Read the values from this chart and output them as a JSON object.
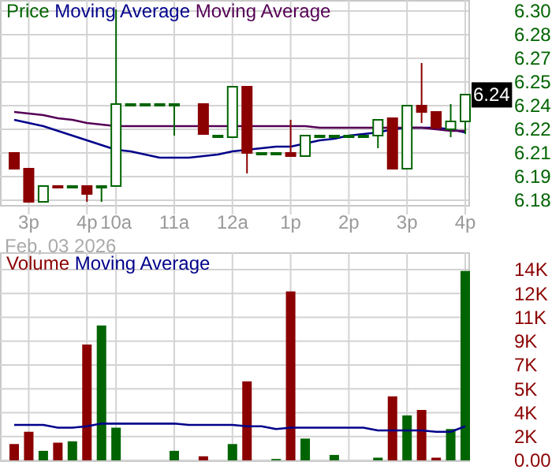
{
  "chart_data": [
    {
      "type": "candlestick",
      "categories": [
        null,
        "3p",
        null,
        null,
        null,
        "4p",
        null,
        "10a",
        null,
        null,
        null,
        "11a",
        null,
        null,
        null,
        "12a",
        null,
        null,
        null,
        "1p",
        null,
        null,
        null,
        "2p",
        null,
        null,
        null,
        "3p",
        null,
        null,
        null,
        "4p"
      ],
      "ylim": [
        6.177,
        6.307
      ],
      "yticks": [
        {
          "value": 6.18,
          "label": "6.18"
        },
        {
          "value": 6.195,
          "label": "6.19"
        },
        {
          "value": 6.21,
          "label": "6.21"
        },
        {
          "value": 6.225,
          "label": "6.22"
        },
        {
          "value": 6.24,
          "label": "6.24"
        },
        {
          "value": 6.255,
          "label": "6.25"
        },
        {
          "value": 6.27,
          "label": "6.27"
        },
        {
          "value": 6.285,
          "label": "6.28"
        },
        {
          "value": 6.3,
          "label": "6.30"
        }
      ],
      "grid": true,
      "legend": "top left",
      "series": [
        {
          "name": "Price",
          "color": "#006400",
          "ohlc": [
            [
              6.21,
              6.21,
              6.2,
              6.2
            ],
            [
              6.2,
              6.2,
              6.179,
              6.179
            ],
            [
              6.179,
              6.189,
              6.179,
              6.189
            ],
            [
              6.189,
              6.189,
              6.188,
              6.188
            ],
            [
              6.188,
              6.189,
              6.188,
              6.189
            ],
            [
              6.189,
              6.189,
              6.179,
              6.184
            ],
            [
              6.189,
              6.189,
              6.179,
              6.189
            ],
            [
              6.189,
              6.301,
              6.189,
              6.241
            ],
            [
              6.241,
              6.241,
              6.241,
              6.241
            ],
            [
              6.241,
              6.241,
              6.241,
              6.241
            ],
            [
              6.241,
              6.241,
              6.241,
              6.241
            ],
            [
              6.241,
              6.241,
              6.221,
              6.241
            ],
            null,
            [
              6.241,
              6.241,
              6.222,
              6.222
            ],
            [
              6.221,
              6.221,
              6.221,
              6.221
            ],
            [
              6.22,
              6.252,
              6.22,
              6.252
            ],
            [
              6.252,
              6.252,
              6.197,
              6.21
            ],
            [
              6.21,
              6.21,
              6.21,
              6.21
            ],
            [
              6.21,
              6.21,
              6.21,
              6.21
            ],
            [
              6.21,
              6.231,
              6.208,
              6.208
            ],
            [
              6.208,
              6.221,
              6.208,
              6.221
            ],
            [
              6.221,
              6.221,
              6.221,
              6.221
            ],
            [
              6.221,
              6.221,
              6.221,
              6.221
            ],
            [
              6.221,
              6.221,
              6.221,
              6.221
            ],
            [
              6.221,
              6.221,
              6.221,
              6.221
            ],
            [
              6.221,
              6.231,
              6.213,
              6.231
            ],
            [
              6.232,
              6.232,
              6.2,
              6.2
            ],
            [
              6.2,
              6.24,
              6.2,
              6.24
            ],
            [
              6.24,
              6.267,
              6.229,
              6.236
            ],
            [
              6.236,
              6.236,
              6.226,
              6.226
            ],
            [
              6.225,
              6.241,
              6.22,
              6.23
            ],
            [
              6.23,
              6.247,
              6.222,
              6.247
            ]
          ],
          "colors": [
            "#8b0000",
            "#8b0000",
            "#006400",
            "#8b0000",
            "#006400",
            "#8b0000",
            "#006400",
            "#006400",
            "#006400",
            "#006400",
            "#006400",
            "#006400",
            null,
            "#8b0000",
            "#006400",
            "#006400",
            "#8b0000",
            "#006400",
            "#006400",
            "#8b0000",
            "#006400",
            "#006400",
            "#006400",
            "#006400",
            "#006400",
            "#006400",
            "#8b0000",
            "#006400",
            "#8b0000",
            "#8b0000",
            "#006400",
            "#006400"
          ]
        },
        {
          "type": "line",
          "name": "Moving Average",
          "color": "#00008b",
          "values": [
            6.231,
            6.229,
            6.227,
            6.224,
            6.221,
            6.218,
            6.215,
            6.212,
            6.211,
            6.209,
            6.207,
            6.207,
            6.207,
            6.208,
            6.209,
            6.211,
            6.212,
            6.213,
            6.214,
            6.214,
            6.216,
            6.218,
            6.219,
            6.221,
            6.222,
            6.223,
            6.225,
            6.226,
            6.226,
            6.226,
            6.225,
            6.223
          ]
        },
        {
          "type": "line",
          "name": "Moving Average",
          "color": "#550055",
          "values": [
            6.236,
            6.235,
            6.234,
            6.232,
            6.231,
            6.229,
            6.228,
            6.227,
            6.227,
            6.227,
            6.227,
            6.227,
            6.227,
            6.227,
            6.227,
            6.227,
            6.227,
            6.227,
            6.227,
            6.227,
            6.227,
            6.226,
            6.226,
            6.226,
            6.226,
            6.226,
            6.226,
            6.226,
            6.226,
            6.225,
            6.224,
            6.224
          ]
        }
      ],
      "annotations": [
        "Feb, 03 2026",
        {
          "text": "6.24",
          "y": 6.247
        }
      ]
    },
    {
      "type": "bar",
      "categories": [
        null,
        null,
        null,
        null,
        null,
        null,
        null,
        null,
        null,
        null,
        null,
        null,
        null,
        null,
        null,
        null,
        null,
        null,
        null,
        null,
        null,
        null,
        null,
        null,
        null,
        null,
        null,
        null,
        null,
        null,
        null,
        null
      ],
      "ylim": [
        0,
        14000
      ],
      "yticks": [
        {
          "value": 0,
          "label": "0.00"
        },
        {
          "value": 1750,
          "label": "2K"
        },
        {
          "value": 3500,
          "label": "4K"
        },
        {
          "value": 5250,
          "label": "5K"
        },
        {
          "value": 7000,
          "label": "7K"
        },
        {
          "value": 8750,
          "label": "9K"
        },
        {
          "value": 10500,
          "label": "11K"
        },
        {
          "value": 12250,
          "label": "12K"
        },
        {
          "value": 14000,
          "label": "14K"
        }
      ],
      "grid": true,
      "legend": "top left",
      "tick_labels": "y",
      "series": [
        {
          "name": "Volume",
          "color": "#8b0000",
          "values": [
            1200,
            2100,
            700,
            1300,
            1400,
            8500,
            9900,
            2400,
            0,
            0,
            0,
            700,
            null,
            300,
            0,
            1200,
            5800,
            0,
            100,
            12400,
            1600,
            0,
            400,
            0,
            0,
            200,
            4700,
            3300,
            3700,
            200,
            2300,
            13900
          ],
          "colors": [
            "#8b0000",
            "#8b0000",
            "#006400",
            "#8b0000",
            "#006400",
            "#8b0000",
            "#006400",
            "#006400",
            "#006400",
            "#006400",
            "#006400",
            "#006400",
            null,
            "#8b0000",
            "#006400",
            "#006400",
            "#8b0000",
            "#006400",
            "#006400",
            "#8b0000",
            "#006400",
            "#006400",
            "#006400",
            "#006400",
            "#006400",
            "#006400",
            "#8b0000",
            "#006400",
            "#8b0000",
            "#8b0000",
            "#006400",
            "#006400"
          ]
        },
        {
          "type": "line",
          "name": "Moving Average",
          "color": "#00008b",
          "values": [
            2600,
            2600,
            2600,
            2400,
            2400,
            2500,
            2700,
            2700,
            2700,
            2700,
            2700,
            2700,
            2600,
            2600,
            2600,
            2600,
            2500,
            2500,
            2300,
            2400,
            2400,
            2400,
            2400,
            2400,
            2400,
            2200,
            2200,
            2200,
            2200,
            2100,
            2100,
            2500
          ]
        }
      ]
    }
  ]
}
